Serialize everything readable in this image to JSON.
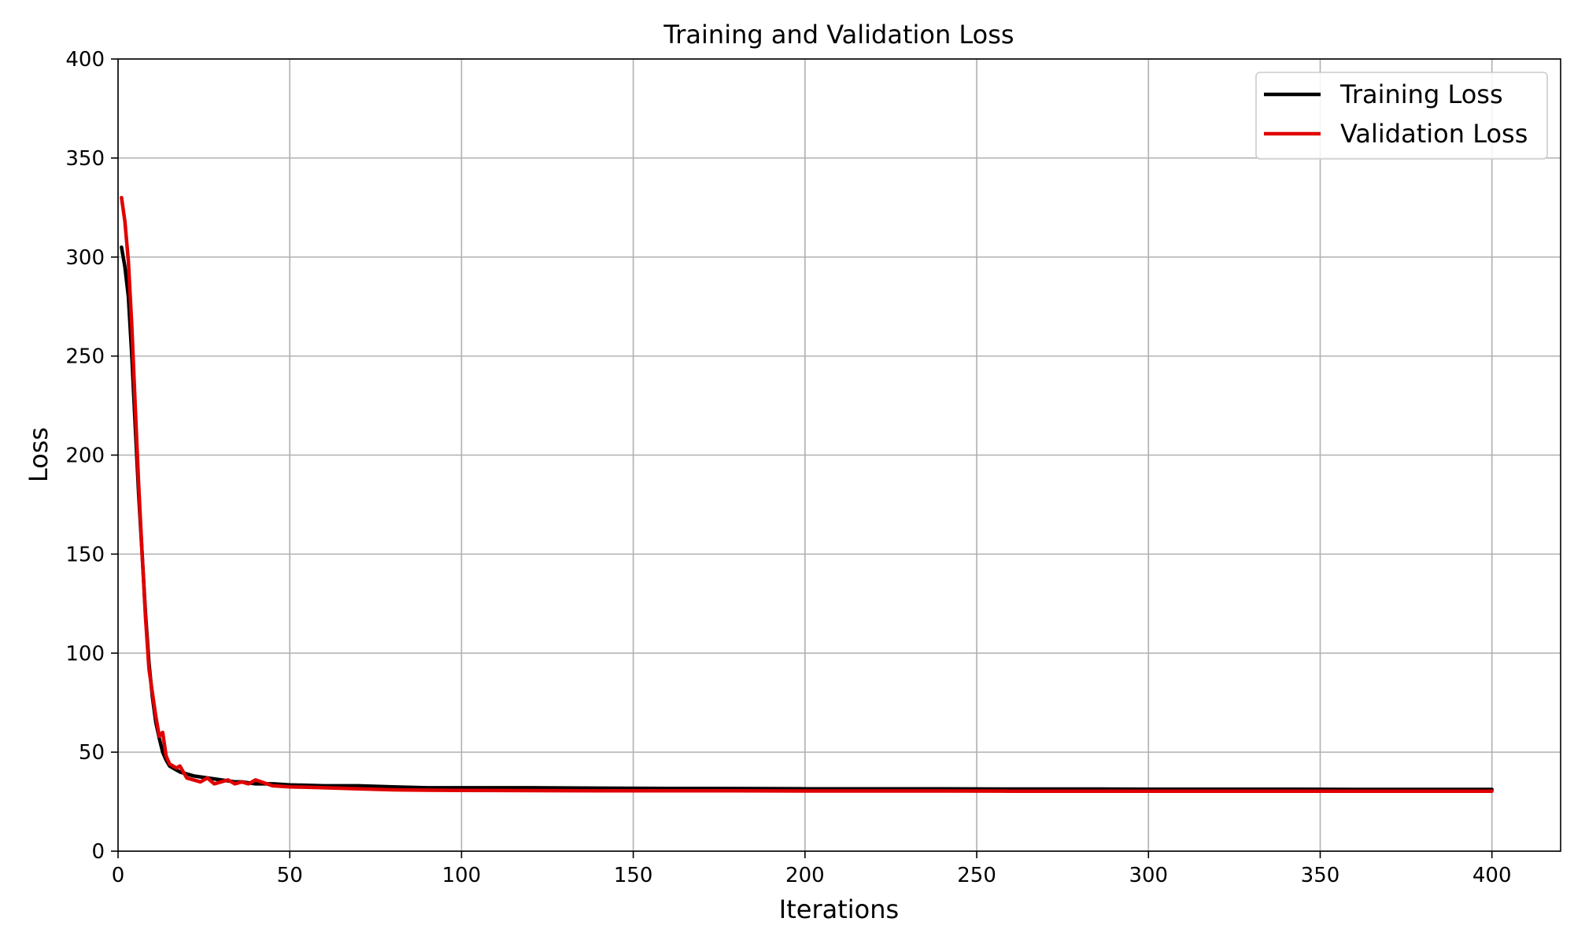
{
  "chart_data": {
    "type": "line",
    "title": "Training and Validation Loss",
    "xlabel": "Iterations",
    "ylabel": "Loss",
    "xlim": [
      0,
      420
    ],
    "ylim": [
      0,
      400
    ],
    "xticks": [
      0,
      50,
      100,
      150,
      200,
      250,
      300,
      350,
      400
    ],
    "yticks": [
      0,
      50,
      100,
      150,
      200,
      250,
      300,
      350,
      400
    ],
    "grid": true,
    "legend_position": "top-right",
    "x": [
      1,
      2,
      3,
      4,
      5,
      6,
      7,
      8,
      9,
      10,
      11,
      12,
      13,
      14,
      15,
      16,
      17,
      18,
      19,
      20,
      22,
      24,
      26,
      28,
      30,
      32,
      34,
      36,
      38,
      40,
      45,
      50,
      60,
      70,
      80,
      90,
      100,
      120,
      140,
      160,
      180,
      200,
      220,
      240,
      260,
      280,
      300,
      320,
      340,
      360,
      380,
      400
    ],
    "series": [
      {
        "name": "Training Loss",
        "color": "#000000",
        "values": [
          305,
          295,
          280,
          250,
          215,
          180,
          150,
          120,
          95,
          78,
          65,
          57,
          50,
          46,
          43,
          42,
          41,
          40,
          39.5,
          39,
          38,
          37.5,
          37,
          36.5,
          36,
          35.5,
          35,
          35,
          34.5,
          34,
          34,
          33.5,
          33,
          33,
          32.5,
          32,
          32,
          32,
          31.8,
          31.7,
          31.6,
          31.5,
          31.5,
          31.5,
          31.4,
          31.4,
          31.3,
          31.3,
          31.3,
          31.2,
          31.2,
          31.2
        ]
      },
      {
        "name": "Validation Loss",
        "color": "#e00000",
        "values": [
          330,
          318,
          298,
          265,
          225,
          185,
          150,
          118,
          92,
          80,
          68,
          58,
          60,
          48,
          44,
          43,
          42,
          43,
          40,
          37,
          36,
          35,
          37,
          34,
          35,
          36,
          34,
          35,
          34,
          36,
          33,
          32.5,
          32,
          31.5,
          31,
          30.8,
          30.7,
          30.6,
          30.5,
          30.5,
          30.5,
          30.4,
          30.4,
          30.4,
          30.3,
          30.3,
          30.3,
          30.3,
          30.3,
          30.3,
          30.3,
          30.3
        ]
      }
    ]
  }
}
